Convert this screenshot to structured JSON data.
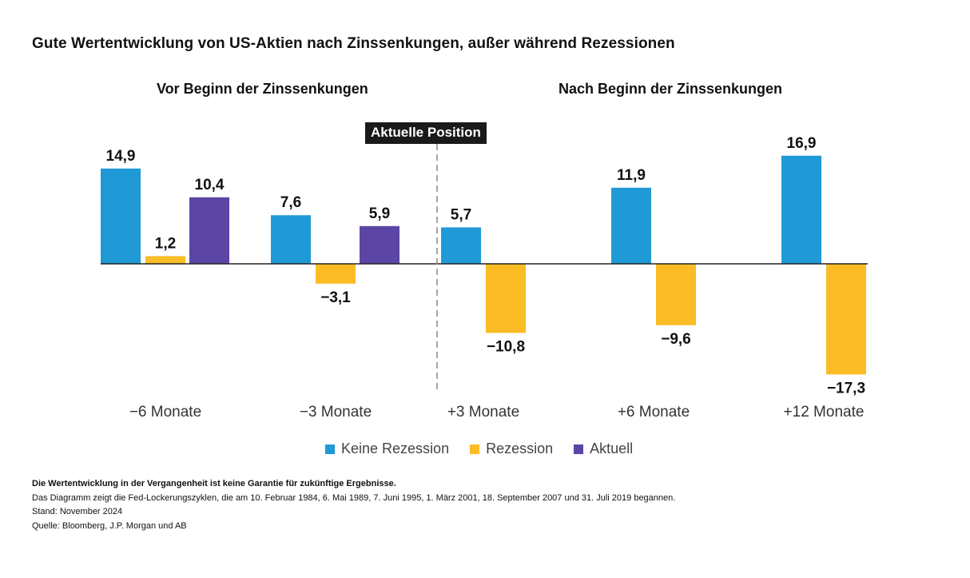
{
  "title": "Gute Wertentwicklung von US-Aktien nach Zinssenkungen, außer während Rezessionen",
  "sections": {
    "before": "Vor Beginn der Zinssenkungen",
    "after": "Nach Beginn der Zinssenkungen"
  },
  "current_position_label": "Aktuelle Position",
  "colors": {
    "keine": "#1f9ad6",
    "rezession": "#fbbc26",
    "aktuell": "#5b46a6"
  },
  "chart_data": {
    "type": "bar",
    "categories": [
      "−6 Monate",
      "−3 Monate",
      "+3 Monate",
      "+6 Monate",
      "+12 Monate"
    ],
    "series": [
      {
        "name": "Keine Rezession",
        "values": [
          14.9,
          7.6,
          5.7,
          11.9,
          16.9
        ],
        "labels": [
          "14,9",
          "7,6",
          "5,7",
          "11,9",
          "16,9"
        ]
      },
      {
        "name": "Rezession",
        "values": [
          1.2,
          -3.1,
          -10.8,
          -9.6,
          -17.3
        ],
        "labels": [
          "1,2",
          "−3,1",
          "−10,8",
          "−9,6",
          "−17,3"
        ]
      },
      {
        "name": "Aktuell",
        "values": [
          10.4,
          5.9,
          null,
          null,
          null
        ],
        "labels": [
          "10,4",
          "5,9",
          null,
          null,
          null
        ]
      }
    ],
    "ylim": [
      -20,
      20
    ]
  },
  "legend": [
    "Keine Rezession",
    "Rezession",
    "Aktuell"
  ],
  "notes": {
    "disclaimer": "Die Wertentwicklung in der Vergangenheit ist keine Garantie für zukünftige Ergebnisse.",
    "description": "Das Diagramm zeigt die Fed-Lockerungszyklen, die am 10. Februar 1984, 6. Mai 1989, 7. Juni 1995, 1. März 2001, 18. September 2007 und 31. Juli 2019 begannen.",
    "date": "Stand: November 2024",
    "source": "Quelle: Bloomberg, J.P. Morgan und AB"
  }
}
